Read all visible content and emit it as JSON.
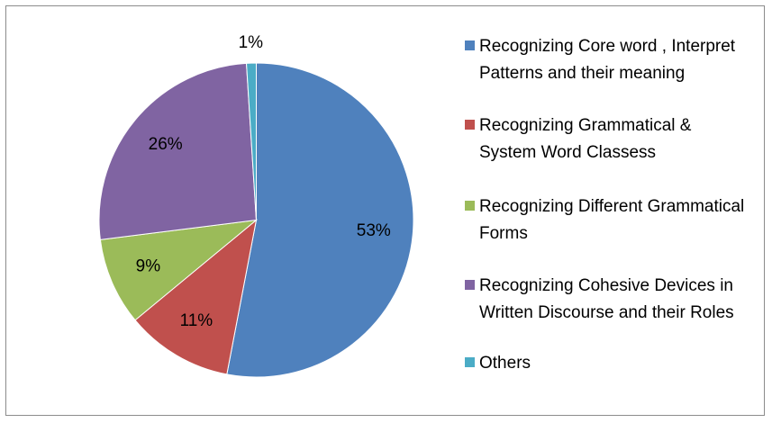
{
  "chart_data": {
    "type": "pie",
    "categories": [
      "Recognizing Core word , Interpret Patterns and their meaning",
      "Recognizing Grammatical & System Word Classess",
      "Recognizing Different Grammatical Forms",
      "Recognizing Cohesive Devices in Written Discourse and their Roles",
      "Others"
    ],
    "values": [
      53,
      11,
      9,
      26,
      1
    ],
    "value_labels": [
      "53%",
      "11%",
      "9%",
      "26%",
      "1%"
    ],
    "colors": [
      "#4f81bd",
      "#c0504d",
      "#9bbb59",
      "#8064a2",
      "#4bacc6"
    ],
    "legend": "right"
  }
}
